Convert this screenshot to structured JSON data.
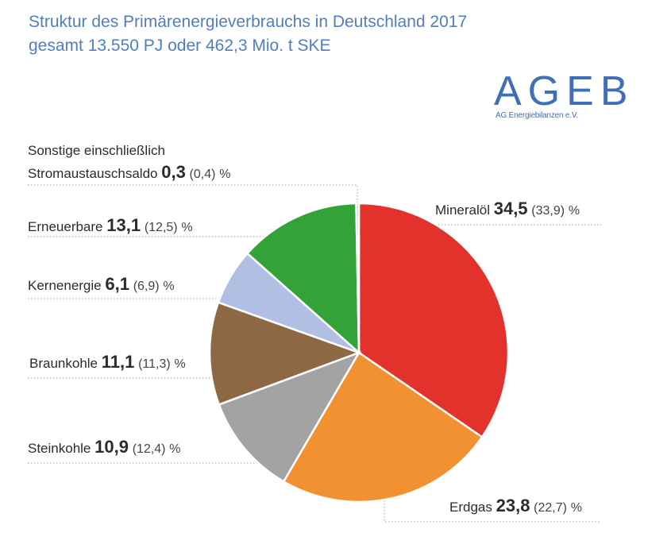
{
  "title": {
    "line1": "Struktur des Primärenergieverbrauchs in Deutschland 2017",
    "line2": "gesamt 13.550 PJ oder 462,3 Mio. t SKE"
  },
  "logo": {
    "main": "AGEB",
    "sub": "AG Energiebilanzen e.V."
  },
  "chart_data": {
    "type": "pie",
    "title": "Struktur des Primärenergieverbrauchs in Deutschland 2017",
    "subtitle": "gesamt 13.550 PJ oder 462,3 Mio. t SKE",
    "slices": [
      {
        "name": "Mineralöl",
        "value": 34.5,
        "value_label": "34,5",
        "previous_label": "(33,9)",
        "unit": "%",
        "color": "#e2322b"
      },
      {
        "name": "Erdgas",
        "value": 23.8,
        "value_label": "23,8",
        "previous_label": "(22,7)",
        "unit": "%",
        "color": "#f29132"
      },
      {
        "name": "Steinkohle",
        "value": 10.9,
        "value_label": "10,9",
        "previous_label": "(12,4)",
        "unit": "%",
        "color": "#a3a3a3"
      },
      {
        "name": "Braunkohle",
        "value": 11.1,
        "value_label": "11,1",
        "previous_label": "(11,3)",
        "unit": "%",
        "color": "#8d6845"
      },
      {
        "name": "Kernenergie",
        "value": 6.1,
        "value_label": "6,1",
        "previous_label": "(6,9)",
        "unit": "%",
        "color": "#b0bfe2"
      },
      {
        "name": "Erneuerbare",
        "value": 13.1,
        "value_label": "13,1",
        "previous_label": "(12,5)",
        "unit": "%",
        "color": "#33a338"
      },
      {
        "name_line1": "Sonstige einschließlich",
        "name": "Stromaustauschsaldo",
        "value": 0.3,
        "value_label": "0,3",
        "previous_label": "(0,4)",
        "unit": "%",
        "color": "#c9c9c9"
      }
    ]
  }
}
